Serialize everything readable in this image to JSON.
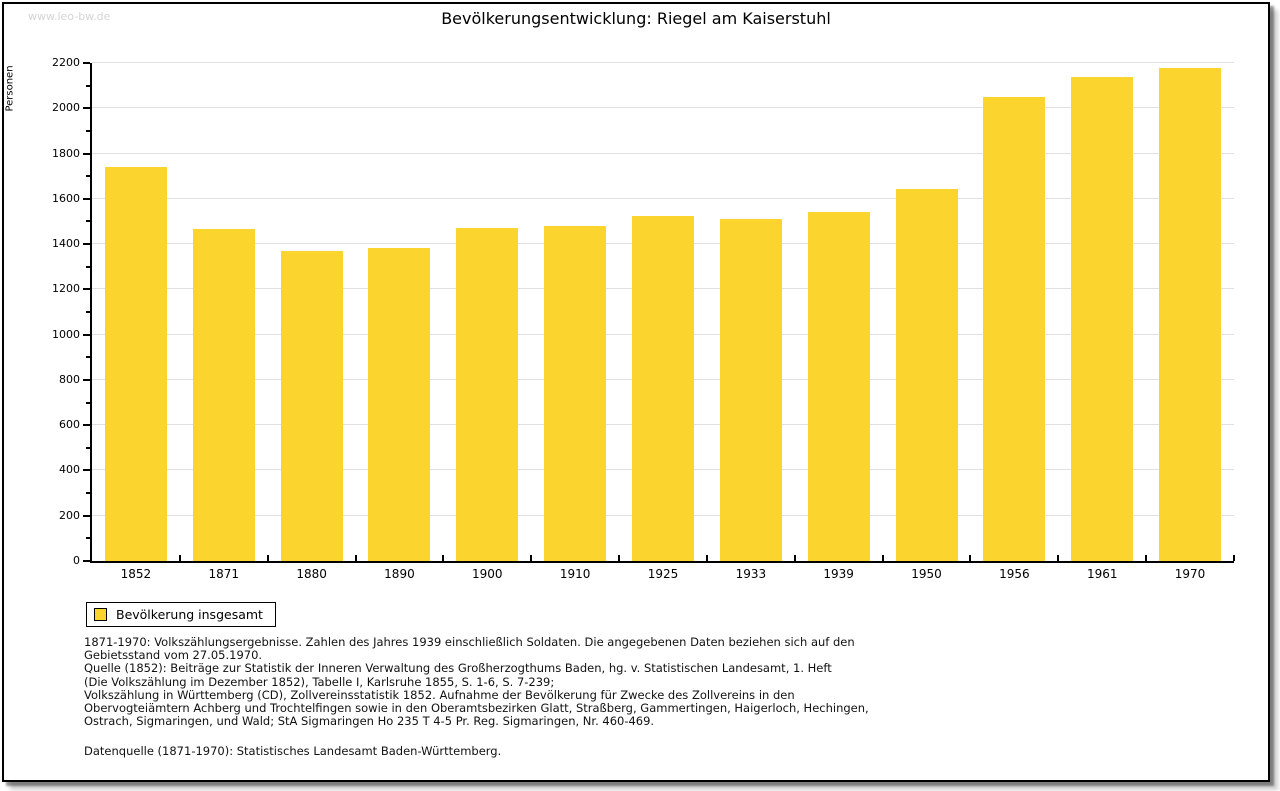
{
  "page": {
    "watermark": "www.leo-bw.de",
    "title": "Bevölkerungsentwicklung: Riegel am Kaiserstuhl"
  },
  "chart_data": {
    "type": "bar",
    "title": "Bevölkerungsentwicklung: Riegel am Kaiserstuhl",
    "ylabel": "Personen",
    "xlabel": "",
    "categories": [
      "1852",
      "1871",
      "1880",
      "1890",
      "1900",
      "1910",
      "1925",
      "1933",
      "1939",
      "1950",
      "1956",
      "1961",
      "1970"
    ],
    "values": [
      1740,
      1465,
      1370,
      1385,
      1470,
      1480,
      1525,
      1510,
      1540,
      1645,
      2050,
      2140,
      2180
    ],
    "series_name": "Bevölkerung insgesamt",
    "ylim": [
      0,
      2200
    ],
    "ytick_step": 200,
    "yminor_step": 100,
    "grid": true,
    "legend_position": "bottom-left",
    "bar_color": "#fcd42e",
    "grid_color": "#e0e0e0"
  },
  "legend": {
    "label": "Bevölkerung insgesamt"
  },
  "footer": {
    "lines": [
      "1871-1970: Volkszählungsergebnisse. Zahlen des Jahres 1939 einschließlich Soldaten. Die angegebenen Daten beziehen sich auf den",
      "Gebietsstand vom 27.05.1970.",
      "Quelle (1852): Beiträge zur Statistik der Inneren Verwaltung des Großherzogthums Baden, hg. v. Statistischen Landesamt, 1. Heft",
      "(Die Volkszählung im Dezember 1852), Tabelle I, Karlsruhe 1855, S. 1-6, S. 7-239;",
      "Volkszählung in Württemberg (CD), Zollvereinsstatistik 1852. Aufnahme der Bevölkerung für Zwecke des Zollvereins in den",
      "Obervogteiämtern Achberg und Trochtelfingen sowie in den Oberamtsbezirken Glatt, Straßberg, Gammertingen, Haigerloch, Hechingen,",
      "Ostrach, Sigmaringen, und Wald; StA Sigmaringen Ho 235 T 4-5 Pr. Reg. Sigmaringen, Nr. 460-469."
    ],
    "datasource": "Datenquelle (1871-1970): Statistisches Landesamt Baden-Württemberg."
  }
}
